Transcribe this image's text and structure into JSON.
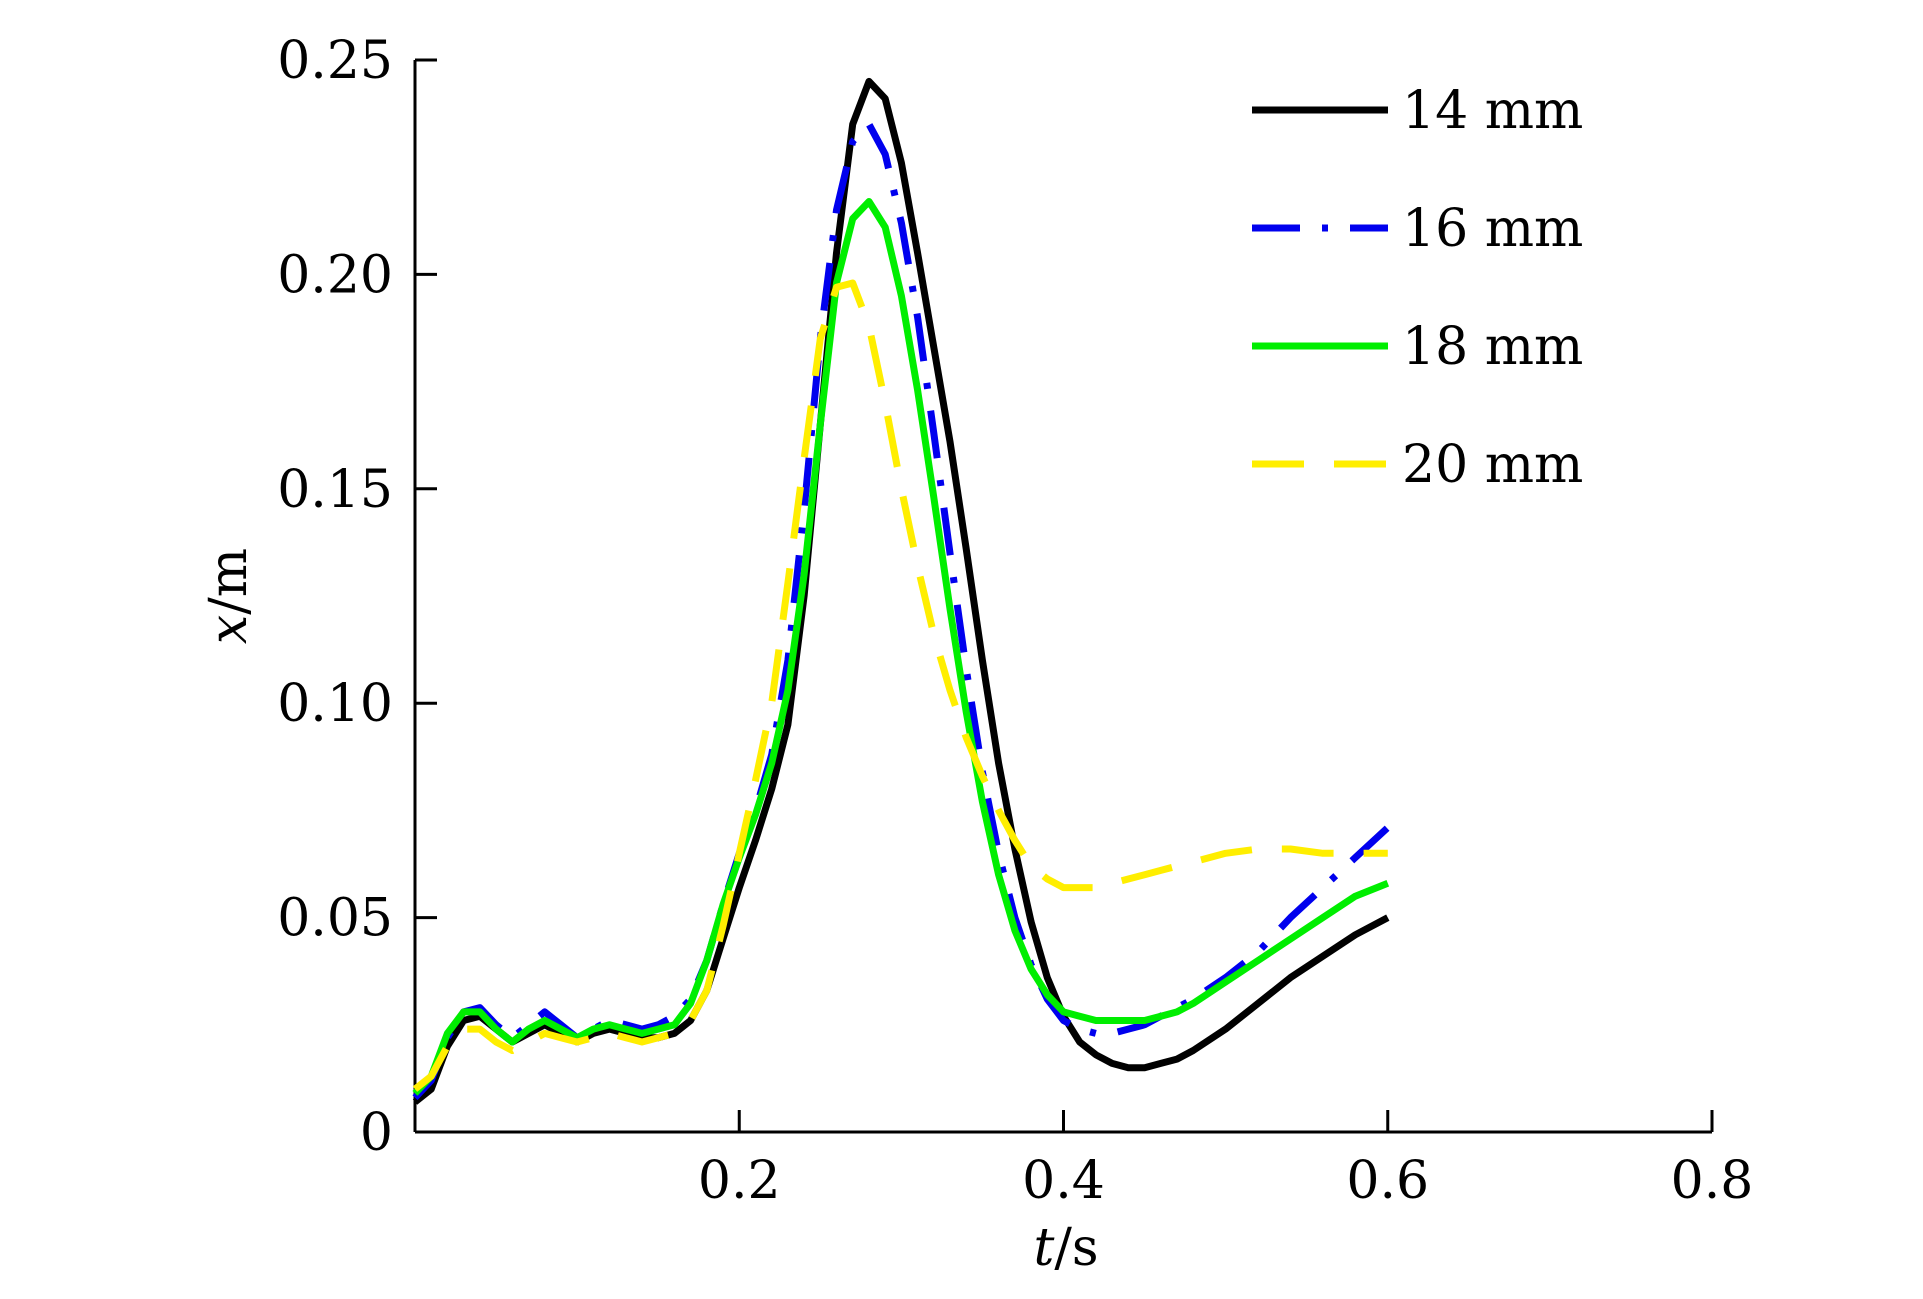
{
  "chart_data": {
    "type": "line",
    "title": "",
    "xlabel": {
      "var": "t",
      "unit": "/s"
    },
    "ylabel": {
      "var": "x",
      "unit": "/m"
    },
    "xlim": [
      0,
      0.8
    ],
    "ylim": [
      0,
      0.25
    ],
    "xticks": [
      {
        "value": 0.2,
        "label": "0.2"
      },
      {
        "value": 0.4,
        "label": "0.4"
      },
      {
        "value": 0.6,
        "label": "0.6"
      },
      {
        "value": 0.8,
        "label": "0.8"
      }
    ],
    "yticks": [
      {
        "value": 0,
        "label": "0"
      },
      {
        "value": 0.05,
        "label": "0.05"
      },
      {
        "value": 0.1,
        "label": "0.10"
      },
      {
        "value": 0.15,
        "label": "0.15"
      },
      {
        "value": 0.2,
        "label": "0.20"
      },
      {
        "value": 0.25,
        "label": "0.25"
      }
    ],
    "grid": false,
    "legend_position": "top-right",
    "series": [
      {
        "name": "14 mm",
        "color": "#000000",
        "style": "solid",
        "x": [
          0,
          0.01,
          0.02,
          0.03,
          0.04,
          0.05,
          0.06,
          0.07,
          0.08,
          0.09,
          0.1,
          0.11,
          0.12,
          0.13,
          0.14,
          0.15,
          0.16,
          0.17,
          0.18,
          0.19,
          0.2,
          0.21,
          0.22,
          0.23,
          0.24,
          0.25,
          0.26,
          0.27,
          0.28,
          0.29,
          0.3,
          0.31,
          0.32,
          0.33,
          0.34,
          0.35,
          0.36,
          0.37,
          0.38,
          0.39,
          0.4,
          0.41,
          0.42,
          0.43,
          0.44,
          0.45,
          0.46,
          0.47,
          0.48,
          0.5,
          0.52,
          0.54,
          0.56,
          0.58,
          0.6
        ],
        "y": [
          0.007,
          0.01,
          0.02,
          0.026,
          0.027,
          0.024,
          0.021,
          0.023,
          0.025,
          0.023,
          0.021,
          0.023,
          0.024,
          0.023,
          0.022,
          0.022,
          0.023,
          0.026,
          0.033,
          0.045,
          0.057,
          0.068,
          0.08,
          0.095,
          0.125,
          0.165,
          0.205,
          0.235,
          0.245,
          0.241,
          0.226,
          0.205,
          0.183,
          0.161,
          0.136,
          0.11,
          0.086,
          0.066,
          0.049,
          0.036,
          0.027,
          0.021,
          0.018,
          0.016,
          0.015,
          0.015,
          0.016,
          0.017,
          0.019,
          0.024,
          0.03,
          0.036,
          0.041,
          0.046,
          0.05
        ]
      },
      {
        "name": "16 mm",
        "color": "#0000ee",
        "style": "dashdot",
        "x": [
          0,
          0.01,
          0.02,
          0.03,
          0.04,
          0.05,
          0.06,
          0.07,
          0.08,
          0.09,
          0.1,
          0.11,
          0.12,
          0.13,
          0.14,
          0.15,
          0.16,
          0.17,
          0.18,
          0.19,
          0.2,
          0.21,
          0.22,
          0.23,
          0.24,
          0.25,
          0.26,
          0.27,
          0.28,
          0.29,
          0.3,
          0.31,
          0.32,
          0.33,
          0.34,
          0.35,
          0.36,
          0.37,
          0.38,
          0.39,
          0.4,
          0.41,
          0.42,
          0.43,
          0.44,
          0.45,
          0.46,
          0.47,
          0.48,
          0.5,
          0.52,
          0.54,
          0.56,
          0.58,
          0.6
        ],
        "y": [
          0.008,
          0.012,
          0.022,
          0.028,
          0.029,
          0.025,
          0.022,
          0.025,
          0.028,
          0.025,
          0.022,
          0.024,
          0.026,
          0.025,
          0.024,
          0.025,
          0.027,
          0.031,
          0.04,
          0.053,
          0.065,
          0.075,
          0.088,
          0.11,
          0.145,
          0.185,
          0.215,
          0.231,
          0.235,
          0.228,
          0.212,
          0.19,
          0.163,
          0.135,
          0.108,
          0.084,
          0.065,
          0.05,
          0.039,
          0.031,
          0.026,
          0.024,
          0.023,
          0.023,
          0.024,
          0.025,
          0.027,
          0.029,
          0.031,
          0.036,
          0.042,
          0.05,
          0.057,
          0.064,
          0.071
        ]
      },
      {
        "name": "18 mm",
        "color": "#00ee00",
        "style": "solid",
        "x": [
          0,
          0.01,
          0.02,
          0.03,
          0.04,
          0.05,
          0.06,
          0.07,
          0.08,
          0.09,
          0.1,
          0.11,
          0.12,
          0.13,
          0.14,
          0.15,
          0.16,
          0.17,
          0.18,
          0.19,
          0.2,
          0.21,
          0.22,
          0.23,
          0.24,
          0.25,
          0.26,
          0.27,
          0.28,
          0.29,
          0.3,
          0.31,
          0.32,
          0.33,
          0.34,
          0.35,
          0.36,
          0.37,
          0.38,
          0.39,
          0.4,
          0.41,
          0.42,
          0.43,
          0.44,
          0.45,
          0.46,
          0.47,
          0.48,
          0.5,
          0.52,
          0.54,
          0.56,
          0.58,
          0.6
        ],
        "y": [
          0.009,
          0.013,
          0.023,
          0.028,
          0.028,
          0.024,
          0.021,
          0.024,
          0.026,
          0.024,
          0.022,
          0.024,
          0.025,
          0.024,
          0.023,
          0.024,
          0.025,
          0.03,
          0.04,
          0.053,
          0.064,
          0.074,
          0.086,
          0.103,
          0.13,
          0.165,
          0.198,
          0.213,
          0.217,
          0.211,
          0.195,
          0.173,
          0.148,
          0.122,
          0.098,
          0.077,
          0.06,
          0.047,
          0.038,
          0.032,
          0.028,
          0.027,
          0.026,
          0.026,
          0.026,
          0.026,
          0.027,
          0.028,
          0.03,
          0.035,
          0.04,
          0.045,
          0.05,
          0.055,
          0.058
        ]
      },
      {
        "name": "20 mm",
        "color": "#ffee00",
        "style": "dashed",
        "x": [
          0,
          0.01,
          0.02,
          0.03,
          0.04,
          0.05,
          0.06,
          0.07,
          0.08,
          0.09,
          0.1,
          0.11,
          0.12,
          0.13,
          0.14,
          0.15,
          0.16,
          0.17,
          0.18,
          0.19,
          0.2,
          0.21,
          0.22,
          0.23,
          0.24,
          0.25,
          0.26,
          0.27,
          0.28,
          0.29,
          0.3,
          0.31,
          0.32,
          0.33,
          0.34,
          0.35,
          0.36,
          0.37,
          0.38,
          0.39,
          0.4,
          0.41,
          0.42,
          0.43,
          0.44,
          0.45,
          0.46,
          0.47,
          0.48,
          0.5,
          0.52,
          0.54,
          0.56,
          0.58,
          0.6
        ],
        "y": [
          0.01,
          0.013,
          0.02,
          0.024,
          0.024,
          0.021,
          0.019,
          0.021,
          0.023,
          0.022,
          0.021,
          0.022,
          0.023,
          0.022,
          0.021,
          0.022,
          0.023,
          0.026,
          0.033,
          0.048,
          0.065,
          0.082,
          0.1,
          0.128,
          0.157,
          0.185,
          0.197,
          0.198,
          0.188,
          0.17,
          0.15,
          0.132,
          0.116,
          0.103,
          0.092,
          0.083,
          0.075,
          0.068,
          0.062,
          0.059,
          0.057,
          0.057,
          0.057,
          0.058,
          0.059,
          0.06,
          0.061,
          0.062,
          0.063,
          0.065,
          0.066,
          0.066,
          0.065,
          0.065,
          0.065
        ]
      }
    ]
  }
}
